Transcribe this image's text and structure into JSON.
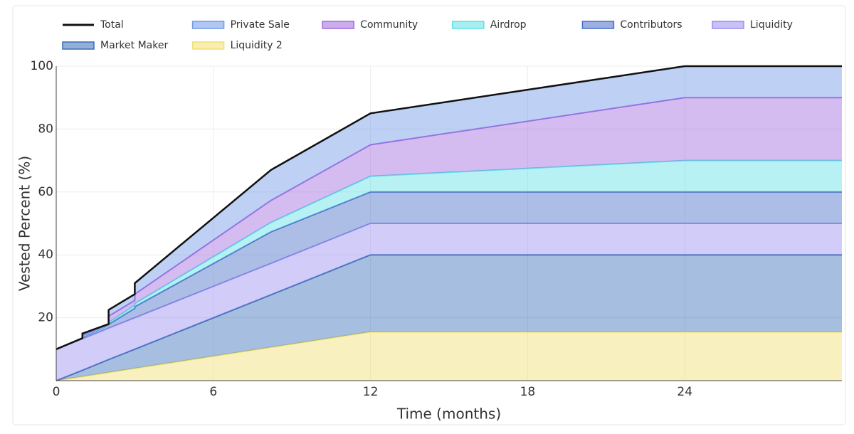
{
  "chart_data": {
    "type": "area",
    "stacked": true,
    "x_label": "Time (months)",
    "y_label": "Vested Percent (%)",
    "x": [
      0,
      1,
      1,
      2,
      2,
      3,
      3,
      8.2,
      12,
      24,
      30
    ],
    "xlim": [
      0,
      30
    ],
    "xticks": [
      0,
      6,
      12,
      18,
      24
    ],
    "ylim": [
      0,
      100
    ],
    "yticks": [
      20,
      40,
      60,
      80,
      100
    ],
    "grid": true,
    "series": [
      {
        "name": "Total",
        "mode": "line",
        "color": "#111111",
        "values": [
          10,
          13.5,
          15,
          18,
          22.5,
          27.5,
          31,
          67,
          85,
          100,
          100
        ]
      },
      {
        "name": "Private Sale",
        "mode": "area",
        "color": "#6f9ae6",
        "values": [
          0,
          0,
          0.5,
          0.1,
          2,
          2,
          3.5,
          9.7,
          10,
          10,
          10
        ]
      },
      {
        "name": "Community",
        "mode": "area",
        "color": "#a06ae0",
        "values": [
          0,
          0,
          0.5,
          0.1,
          2,
          1.5,
          3,
          7,
          10,
          20,
          20
        ]
      },
      {
        "name": "Airdrop",
        "mode": "area",
        "color": "#5fe0e6",
        "values": [
          0,
          0,
          0.2,
          0.1,
          0.6,
          1,
          1,
          3,
          5,
          10,
          10
        ]
      },
      {
        "name": "Contributors",
        "mode": "area",
        "color": "#4a6ec8",
        "values": [
          0,
          0.2,
          0.5,
          1,
          1.2,
          3,
          3.5,
          10,
          10,
          10,
          10
        ]
      },
      {
        "name": "Liquidity",
        "mode": "area",
        "color": "#9a8ef0",
        "values": [
          10,
          10,
          10,
          10,
          10,
          10,
          10,
          10,
          10,
          10,
          10
        ]
      },
      {
        "name": "Market Maker",
        "mode": "area",
        "color": "#3a6eb8",
        "values": [
          0,
          2,
          2,
          4.1,
          4.1,
          6.1,
          6.1,
          16.7,
          24.5,
          24.5,
          24.5
        ]
      },
      {
        "name": "Liquidity 2",
        "mode": "area",
        "color": "#f0e070",
        "values": [
          0,
          1.3,
          1.3,
          2.6,
          2.6,
          3.9,
          3.9,
          10.6,
          15.5,
          15.5,
          15.5
        ]
      }
    ]
  }
}
